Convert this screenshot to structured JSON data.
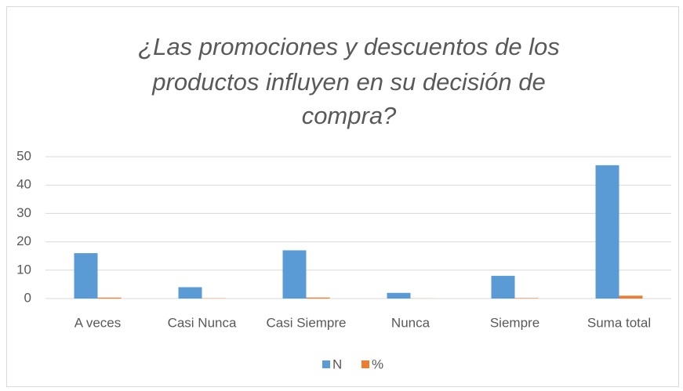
{
  "chart_data": {
    "type": "bar",
    "title": "¿Las promociones y descuentos de los productos influyen en su decisión de compra?",
    "title_lines": [
      "¿Las promociones y descuentos de los",
      "productos influyen en su decisión de",
      "compra?"
    ],
    "categories": [
      "A veces",
      "Casi Nunca",
      "Casi Siempre",
      "Nunca",
      "Siempre",
      "Suma total"
    ],
    "series": [
      {
        "name": "N",
        "color": "#5b9bd5",
        "values": [
          16,
          4,
          17,
          2,
          8,
          47
        ]
      },
      {
        "name": "%",
        "color": "#ed7d31",
        "values": [
          0.34,
          0.09,
          0.36,
          0.04,
          0.17,
          1
        ]
      }
    ],
    "ylim": [
      0,
      50
    ],
    "yticks": [
      0,
      10,
      20,
      30,
      40,
      50
    ],
    "grid": true,
    "legend": "bottom"
  }
}
